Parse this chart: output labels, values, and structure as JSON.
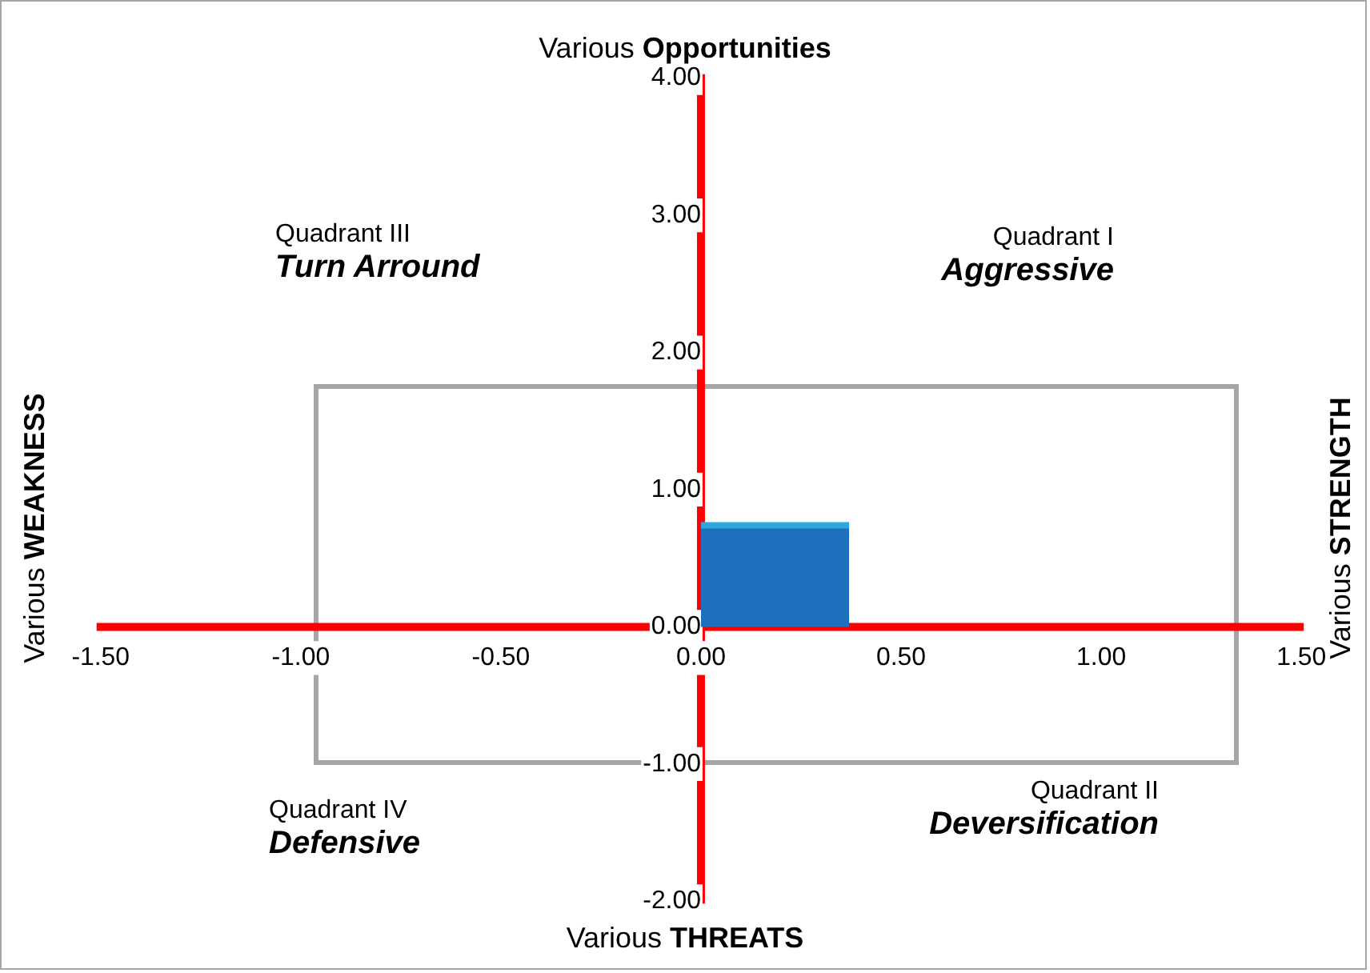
{
  "chart_data": {
    "type": "area",
    "title": "Various Opportunities",
    "xlabel": "Various THREATS",
    "ylabel": "Various WEAKNESS",
    "y2label": "Various STRENGTH",
    "x": [
      0,
      0.37
    ],
    "series": [
      {
        "color": "#1f6fbf",
        "values": [
          0.74,
          0.74
        ]
      }
    ],
    "xlim": [
      -1.5,
      1.5
    ],
    "xticks": [
      {
        "value": -1.5,
        "label": "-1.50"
      },
      {
        "value": -1,
        "label": "-1.00"
      },
      {
        "value": -0.5,
        "label": "-0.50"
      },
      {
        "value": 0,
        "label": "0.00"
      },
      {
        "value": 0.5,
        "label": "0.50"
      },
      {
        "value": 1,
        "label": "1.00"
      },
      {
        "value": 1.5,
        "label": "1.50"
      }
    ],
    "ylim": [
      -2,
      4
    ],
    "yticks": [
      {
        "value": -2,
        "label": "-2.00"
      },
      {
        "value": -1,
        "label": "-1.00"
      },
      {
        "value": 0,
        "label": "0.00"
      },
      {
        "value": 1,
        "label": "1.00"
      },
      {
        "value": 2,
        "label": "2.00"
      },
      {
        "value": 3,
        "label": "3.00"
      },
      {
        "value": 4,
        "label": "4.00"
      }
    ],
    "grid": false,
    "legend": false,
    "marker": "none",
    "annotations": [
      "Quadrant III",
      "Turn Arround",
      "Quadrant I",
      "Aggressive",
      "Quadrant IV",
      "Defensive",
      "Quadrant II",
      "Deversification"
    ]
  }
}
